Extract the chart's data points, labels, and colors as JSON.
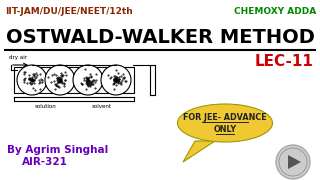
{
  "bg_color": "#ffffff",
  "title_text": "OSTWALD-WALKER METHOD",
  "title_color": "#000000",
  "top_left_text": "IIT-JAM/DU/JEE/NEET/12th",
  "top_left_color": "#8B2500",
  "top_right_text": "CHEMOXY ADDA",
  "top_right_color": "#008800",
  "lec_text": "LEC-11",
  "lec_color": "#cc0000",
  "by_text": "By Agrim Singhal",
  "by_text2": "AIR-321",
  "by_color": "#6600bb",
  "bubble_text1": "FOR JEE- ADVANCE",
  "bubble_text2": "ONLY",
  "bubble_color": "#f0c832",
  "bubble_text_color": "#222222",
  "dry_air_label": "dry air",
  "solution_label": "solution",
  "solvent_label": "solvent"
}
